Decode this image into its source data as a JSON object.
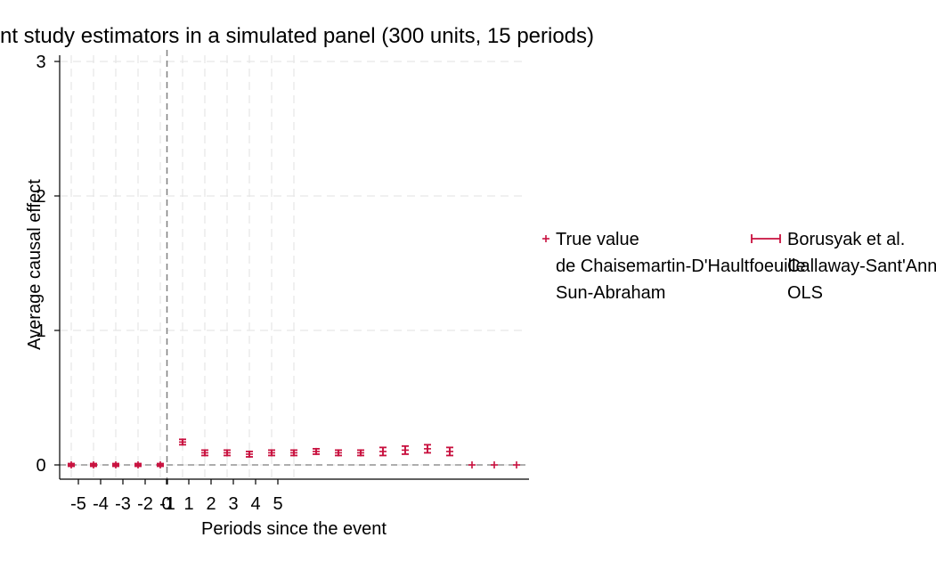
{
  "chart_data": {
    "type": "scatter",
    "title": "nt study estimators in a simulated panel (300 units, 15 periods)",
    "xlabel": "Periods since the event",
    "ylabel": "Average causal effect",
    "x_tick_labels": [
      "-5",
      "-4",
      "-3",
      "-2",
      "-1",
      "0",
      "1",
      "2",
      "3",
      "4",
      "5"
    ],
    "y_ticks": [
      0,
      1,
      2,
      3
    ],
    "ylim": [
      -0.1,
      3.05
    ],
    "event_line_at": -0.5,
    "grid": true,
    "legend_position": "right",
    "legend": [
      "True value",
      "Borusyak et al.",
      "de Chaisemartin-D'Haultfoeuille",
      "Callaway-Sant'Anna",
      "Sun-Abraham",
      "OLS"
    ],
    "series": [
      {
        "name": "True value",
        "color": "#c8103e",
        "points": [
          {
            "x": -5,
            "y": 0.0
          },
          {
            "x": -4,
            "y": 0.0
          },
          {
            "x": -3,
            "y": 0.0
          },
          {
            "x": -2,
            "y": 0.0
          },
          {
            "x": -1,
            "y": 0.0
          },
          {
            "x": 0,
            "y": 0.17
          },
          {
            "x": 1,
            "y": 0.09
          },
          {
            "x": 2,
            "y": 0.09
          },
          {
            "x": 3,
            "y": 0.08
          },
          {
            "x": 4,
            "y": 0.09
          },
          {
            "x": 5,
            "y": 0.09
          },
          {
            "x": 6,
            "y": 0.1
          },
          {
            "x": 7,
            "y": 0.09
          },
          {
            "x": 8,
            "y": 0.09
          },
          {
            "x": 9,
            "y": 0.1
          },
          {
            "x": 10,
            "y": 0.11
          },
          {
            "x": 11,
            "y": 0.12
          },
          {
            "x": 12,
            "y": 0.1
          },
          {
            "x": 13,
            "y": 0.0
          },
          {
            "x": 14,
            "y": 0.0
          },
          {
            "x": 15,
            "y": 0.0
          }
        ]
      },
      {
        "name": "Borusyak et al.",
        "color": "#c8103e",
        "points": [
          {
            "x": -5,
            "y": 0.0,
            "lo": -0.01,
            "hi": 0.01
          },
          {
            "x": -4,
            "y": 0.0,
            "lo": -0.01,
            "hi": 0.01
          },
          {
            "x": -3,
            "y": 0.0,
            "lo": -0.01,
            "hi": 0.01
          },
          {
            "x": -2,
            "y": 0.0,
            "lo": -0.01,
            "hi": 0.01
          },
          {
            "x": -1,
            "y": 0.0,
            "lo": -0.01,
            "hi": 0.01
          },
          {
            "x": 0,
            "y": 0.17,
            "lo": 0.15,
            "hi": 0.19
          },
          {
            "x": 1,
            "y": 0.09,
            "lo": 0.07,
            "hi": 0.11
          },
          {
            "x": 2,
            "y": 0.09,
            "lo": 0.07,
            "hi": 0.11
          },
          {
            "x": 3,
            "y": 0.08,
            "lo": 0.06,
            "hi": 0.1
          },
          {
            "x": 4,
            "y": 0.09,
            "lo": 0.07,
            "hi": 0.11
          },
          {
            "x": 5,
            "y": 0.09,
            "lo": 0.07,
            "hi": 0.11
          },
          {
            "x": 6,
            "y": 0.1,
            "lo": 0.08,
            "hi": 0.12
          },
          {
            "x": 7,
            "y": 0.09,
            "lo": 0.07,
            "hi": 0.11
          },
          {
            "x": 8,
            "y": 0.09,
            "lo": 0.07,
            "hi": 0.11
          },
          {
            "x": 9,
            "y": 0.1,
            "lo": 0.07,
            "hi": 0.13
          },
          {
            "x": 10,
            "y": 0.11,
            "lo": 0.08,
            "hi": 0.14
          },
          {
            "x": 11,
            "y": 0.12,
            "lo": 0.09,
            "hi": 0.15
          },
          {
            "x": 12,
            "y": 0.1,
            "lo": 0.07,
            "hi": 0.13
          }
        ]
      }
    ]
  }
}
